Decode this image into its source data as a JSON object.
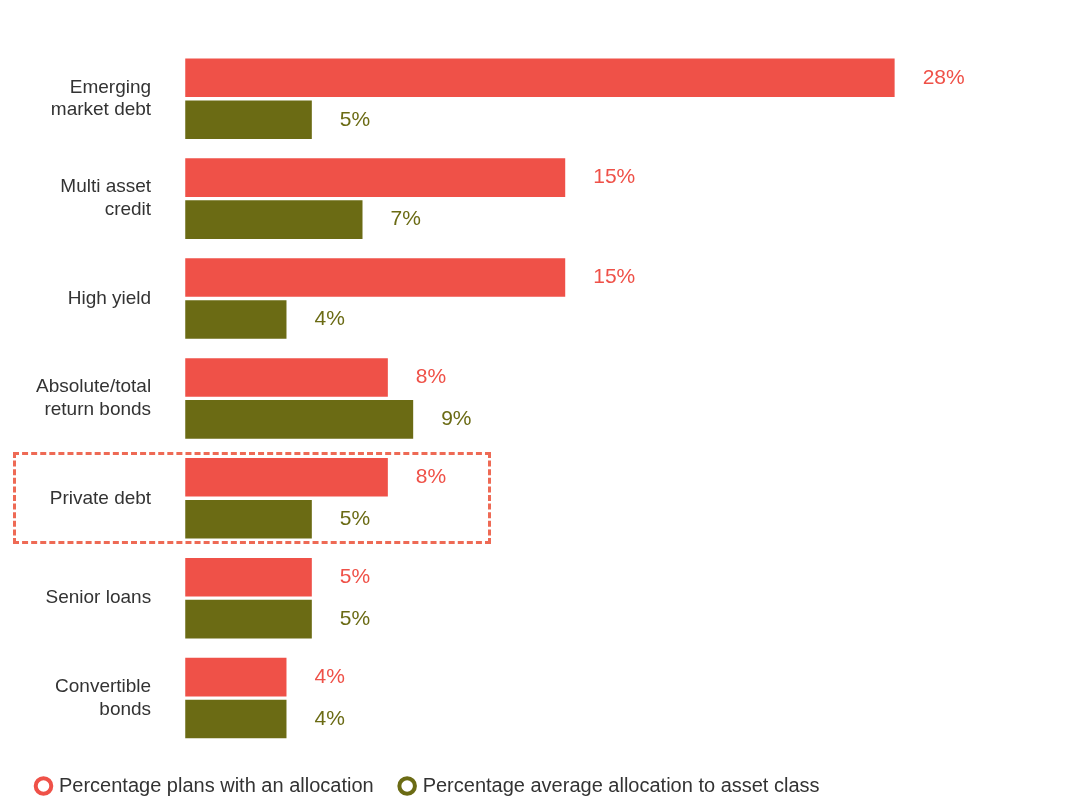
{
  "chart_data": {
    "type": "bar",
    "orientation": "horizontal",
    "tick_labels": "y",
    "categories": [
      "Emerging market debt",
      "Multi asset credit",
      "High yield",
      "Absolute/total return bonds",
      "Private debt",
      "Senior loans",
      "Convertible bonds"
    ],
    "series": [
      {
        "name": "Percentage plans with an allocation",
        "color": "#ef5148",
        "values": [
          28,
          15,
          15,
          8,
          8,
          5,
          4
        ],
        "value_labels": [
          "28%",
          "15%",
          "15%",
          "8%",
          "8%",
          "5%",
          "4%"
        ]
      },
      {
        "name": "Percentage average allocation to asset class",
        "color": "#6b6b14",
        "values": [
          5,
          7,
          4,
          9,
          5,
          5,
          4
        ],
        "value_labels": [
          "5%",
          "7%",
          "4%",
          "9%",
          "5%",
          "5%",
          "4%"
        ]
      }
    ],
    "legend": "bottom left"
  }
}
